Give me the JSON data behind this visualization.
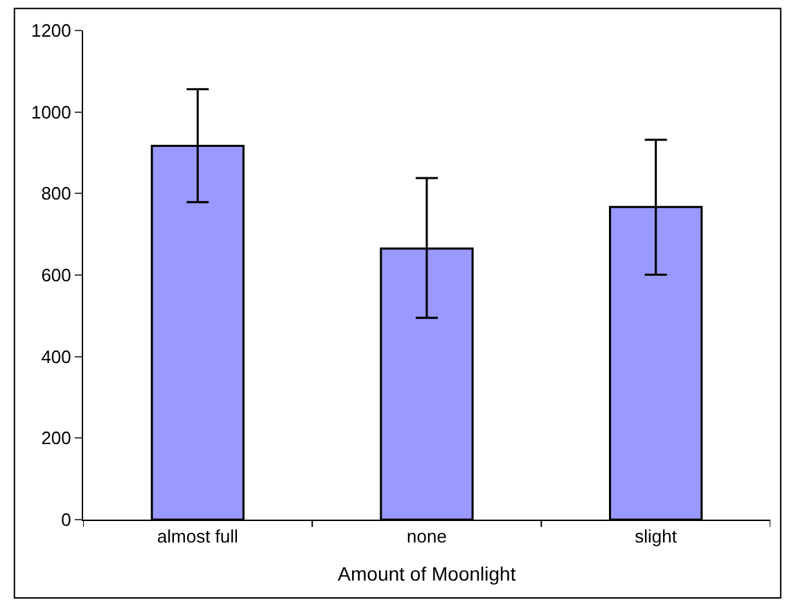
{
  "chart_data": {
    "type": "bar",
    "xlabel": "Amount of Moonlight",
    "categories": [
      "almost full",
      "none",
      "slight"
    ],
    "values": [
      917,
      665,
      767
    ],
    "errors": [
      [
        779,
        1056
      ],
      [
        495,
        838
      ],
      [
        601,
        932
      ]
    ],
    "color": "#9999ff",
    "ylim": [
      0,
      1200
    ],
    "yticks": [
      0,
      200,
      400,
      600,
      800,
      1000,
      1200
    ]
  }
}
